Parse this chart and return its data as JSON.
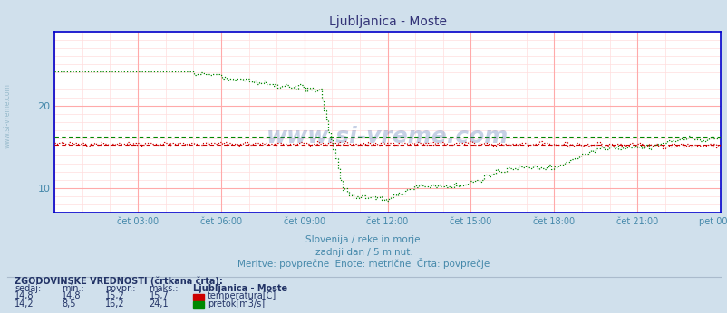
{
  "title": "Ljubljanica - Moste",
  "bg_color": "#d0e0ec",
  "plot_bg_color": "#ffffff",
  "x_tick_labels": [
    "čet 03:00",
    "čet 06:00",
    "čet 09:00",
    "čet 12:00",
    "čet 15:00",
    "čet 18:00",
    "čet 21:00",
    "pet 00:00"
  ],
  "x_tick_positions": [
    0.125,
    0.25,
    0.375,
    0.5,
    0.625,
    0.75,
    0.875,
    1.0
  ],
  "ylim": [
    7.0,
    29.0
  ],
  "yticks": [
    10,
    20
  ],
  "subtitle1": "Slovenija / reke in morje.",
  "subtitle2": "zadnji dan / 5 minut.",
  "subtitle3": "Meritve: povprečne  Enote: metrične  Črta: povprečje",
  "legend_title": "ZGODOVINSKE VREDNOSTI (črtkana črta):",
  "legend_headers": [
    "sedaj:",
    "min.:",
    "povpr.:",
    "maks.:",
    "Ljubljanica - Moste"
  ],
  "legend_row1": [
    "14,8",
    "14,8",
    "15,2",
    "15,7",
    "temperatura[C]"
  ],
  "legend_row2": [
    "14,2",
    "8,5",
    "16,2",
    "24,1",
    "pretok[m3/s]"
  ],
  "temp_color": "#cc0000",
  "flow_color": "#008800",
  "temp_avg": 15.2,
  "temp_min": 14.8,
  "temp_max": 15.7,
  "flow_avg": 16.2,
  "flow_min": 8.5,
  "flow_max": 24.1,
  "n_points": 288,
  "minor_grid_color": "#ffdddd",
  "major_grid_color": "#ffaaaa",
  "axis_color": "#0000cc",
  "text_color": "#4488aa",
  "title_color": "#333377",
  "legend_color": "#223366",
  "watermark_color": "#4466aa",
  "sidebar_color": "#99bbcc"
}
